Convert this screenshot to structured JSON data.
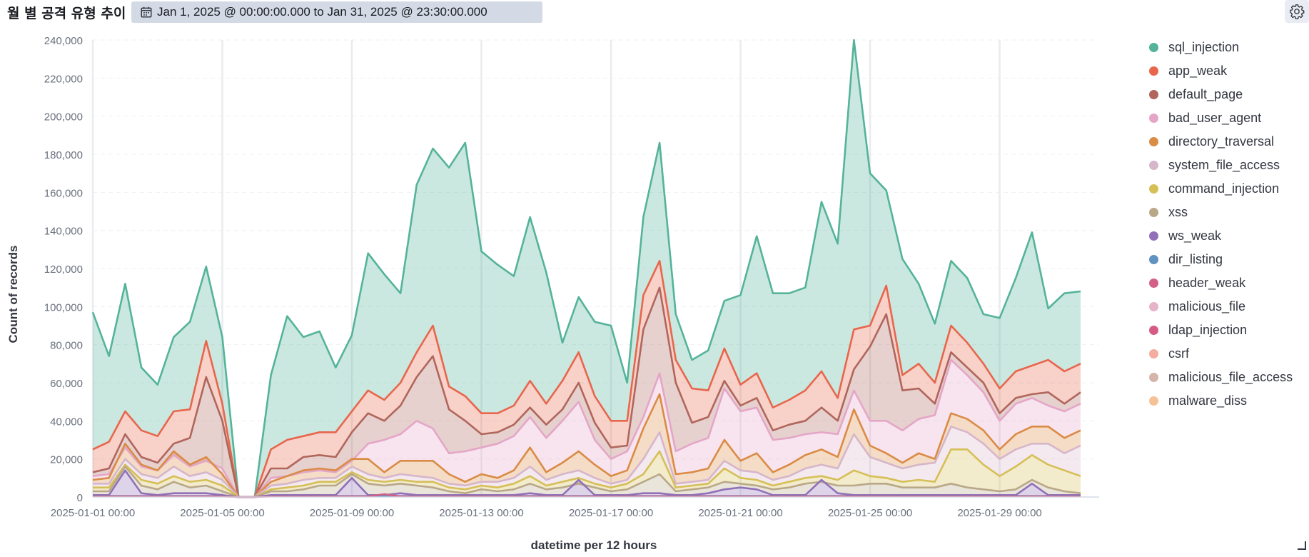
{
  "header": {
    "title": "월 별 공격 유형 추이",
    "time_range": "Jan 1, 2025 @ 00:00:00.000 to Jan 31, 2025 @ 23:30:00.000"
  },
  "icons": {
    "calendar": "calendar-icon",
    "settings": "gear-icon",
    "resize": "resize-handle-icon"
  },
  "chart_data": {
    "type": "area",
    "stacked": true,
    "xlabel": "datetime per 12 hours",
    "ylabel": "Count of records",
    "ylim": [
      0,
      240000
    ],
    "yticks": [
      0,
      20000,
      40000,
      60000,
      80000,
      100000,
      120000,
      140000,
      160000,
      180000,
      200000,
      220000,
      240000
    ],
    "ytick_labels": [
      "0",
      "20,000",
      "40,000",
      "60,000",
      "80,000",
      "100,000",
      "120,000",
      "140,000",
      "160,000",
      "180,000",
      "200,000",
      "220,000",
      "240,000"
    ],
    "x_start": "2025-01-01 00:00",
    "x_interval_hours": 12,
    "xtick_labels": [
      "2025-01-01 00:00",
      "2025-01-05 00:00",
      "2025-01-09 00:00",
      "2025-01-13 00:00",
      "2025-01-17 00:00",
      "2025-01-21 00:00",
      "2025-01-25 00:00",
      "2025-01-29 00:00"
    ],
    "grid": true,
    "legend_position": "right",
    "series": [
      {
        "name": "sql_injection",
        "color": "#54b399",
        "totals": [
          97000,
          74000,
          112000,
          68000,
          59000,
          84000,
          92000,
          121000,
          84000,
          0,
          0,
          64000,
          95000,
          84000,
          87000,
          68000,
          85000,
          128000,
          117000,
          107000,
          164000,
          183000,
          173000,
          186000,
          129000,
          122000,
          116000,
          147000,
          118000,
          81000,
          105000,
          92000,
          90000,
          60000,
          147000,
          186000,
          96000,
          72000,
          77000,
          103000,
          106000,
          137000,
          107000,
          107000,
          110000,
          155000,
          133000,
          240000,
          170000,
          161000,
          125000,
          112000,
          91000,
          124000,
          115000,
          96000,
          94000,
          115000,
          139000,
          99000,
          107000,
          108000
        ]
      },
      {
        "name": "app_weak",
        "color": "#e7664c",
        "totals": [
          25000,
          29000,
          45000,
          35000,
          32000,
          45000,
          46000,
          82000,
          49000,
          0,
          0,
          25000,
          30000,
          32000,
          34000,
          34000,
          45000,
          56000,
          51000,
          60000,
          76000,
          90000,
          58000,
          53000,
          44000,
          44000,
          48000,
          61000,
          49000,
          61000,
          76000,
          53000,
          40000,
          40000,
          106000,
          124000,
          72000,
          57000,
          56000,
          78000,
          59000,
          65000,
          47000,
          51000,
          56000,
          66000,
          52000,
          88000,
          90000,
          111000,
          64000,
          70000,
          60000,
          90000,
          81000,
          70000,
          57000,
          66000,
          69000,
          72000,
          66000,
          70000
        ]
      },
      {
        "name": "default_page",
        "color": "#b0665c",
        "totals": [
          13000,
          15000,
          33000,
          21000,
          18000,
          28000,
          31000,
          63000,
          40000,
          0,
          0,
          15000,
          15000,
          21000,
          22000,
          21000,
          34000,
          44000,
          40000,
          48000,
          63000,
          74000,
          46000,
          40000,
          33000,
          34000,
          38000,
          47000,
          38000,
          46000,
          60000,
          39000,
          26000,
          27000,
          88000,
          110000,
          60000,
          39000,
          42000,
          61000,
          48000,
          52000,
          35000,
          38000,
          40000,
          47000,
          40000,
          67000,
          79000,
          96000,
          56000,
          57000,
          49000,
          76000,
          68000,
          60000,
          44000,
          52000,
          54000,
          55000,
          49000,
          55000
        ]
      },
      {
        "name": "bad_user_agent",
        "color": "#e4a6c7",
        "totals": [
          11000,
          12000,
          26000,
          16000,
          14000,
          22000,
          16000,
          19000,
          15000,
          0,
          0,
          10000,
          11000,
          13000,
          14000,
          13000,
          19000,
          28000,
          30000,
          33000,
          40000,
          36000,
          23000,
          24000,
          26000,
          28000,
          32000,
          42000,
          31000,
          40000,
          50000,
          30000,
          20000,
          24000,
          42000,
          65000,
          24000,
          28000,
          31000,
          57000,
          45000,
          47000,
          30000,
          31000,
          33000,
          34000,
          33000,
          56000,
          40000,
          40000,
          35000,
          41000,
          43000,
          72000,
          64000,
          55000,
          40000,
          49000,
          52000,
          48000,
          45000,
          49000
        ]
      },
      {
        "name": "directory_traversal",
        "color": "#da8b45",
        "totals": [
          9000,
          10000,
          28000,
          17000,
          14000,
          24000,
          17000,
          21000,
          12000,
          0,
          0,
          8000,
          11000,
          14000,
          15000,
          14000,
          20000,
          20000,
          13000,
          19000,
          19000,
          19000,
          12000,
          8000,
          12000,
          10000,
          14000,
          26000,
          13000,
          18000,
          24000,
          17000,
          11000,
          14000,
          36000,
          54000,
          12000,
          13000,
          15000,
          30000,
          19000,
          23000,
          13000,
          17000,
          22000,
          25000,
          21000,
          46000,
          27000,
          23000,
          18000,
          23000,
          20000,
          44000,
          41000,
          35000,
          25000,
          33000,
          37000,
          37000,
          31000,
          35000
        ]
      },
      {
        "name": "system_file_access",
        "color": "#d6b6c9",
        "totals": [
          7000,
          7000,
          20000,
          12000,
          10000,
          16000,
          11000,
          13000,
          9000,
          0,
          0,
          6000,
          7000,
          9000,
          10000,
          10000,
          16000,
          12000,
          10000,
          12000,
          11000,
          10000,
          7000,
          6000,
          8000,
          8000,
          10000,
          16000,
          9000,
          12000,
          14000,
          10000,
          7000,
          9000,
          20000,
          34000,
          7000,
          8000,
          9000,
          19000,
          14000,
          13000,
          9000,
          11000,
          15000,
          17000,
          15000,
          33000,
          21000,
          18000,
          15000,
          17000,
          18000,
          37000,
          34000,
          28000,
          20000,
          25000,
          28000,
          28000,
          23000,
          27000
        ]
      },
      {
        "name": "command_injection",
        "color": "#d6bf57",
        "totals": [
          5000,
          5000,
          17000,
          9000,
          7000,
          11000,
          8000,
          9000,
          6000,
          0,
          0,
          4000,
          5000,
          6000,
          8000,
          8000,
          13000,
          9000,
          8000,
          9000,
          8000,
          8000,
          5000,
          4000,
          6000,
          5000,
          7000,
          11000,
          6000,
          8000,
          10000,
          7000,
          5000,
          7000,
          12000,
          24000,
          5000,
          6000,
          7000,
          15000,
          10000,
          9000,
          6000,
          8000,
          10000,
          11000,
          9000,
          14000,
          11000,
          10000,
          8000,
          9000,
          8000,
          25000,
          25000,
          17000,
          11000,
          16000,
          22000,
          17000,
          14000,
          11000
        ]
      },
      {
        "name": "xss",
        "color": "#b9a888",
        "totals": [
          3000,
          3000,
          16000,
          6000,
          4000,
          8000,
          5000,
          6000,
          3000,
          0,
          0,
          3000,
          3000,
          4000,
          6000,
          6000,
          12000,
          7000,
          6000,
          7000,
          6000,
          5000,
          3000,
          2000,
          4000,
          3000,
          4000,
          7000,
          4000,
          5000,
          7000,
          5000,
          3000,
          4000,
          8000,
          12000,
          3000,
          4000,
          5000,
          8000,
          7000,
          6000,
          4000,
          5000,
          7000,
          8000,
          6000,
          6000,
          7000,
          7000,
          5000,
          5000,
          5000,
          7000,
          5000,
          4000,
          3000,
          4000,
          9000,
          5000,
          3000,
          2000
        ]
      },
      {
        "name": "ws_weak",
        "color": "#9170b8",
        "totals": [
          1000,
          1000,
          14000,
          2000,
          1000,
          2000,
          2000,
          2000,
          1000,
          0,
          0,
          1000,
          1000,
          1000,
          1000,
          1000,
          10000,
          1000,
          1000,
          2000,
          1000,
          1000,
          1000,
          1000,
          1000,
          1000,
          1000,
          2000,
          1000,
          1000,
          9000,
          1000,
          1000,
          1000,
          2000,
          2000,
          1000,
          1000,
          2000,
          4000,
          5000,
          4000,
          1000,
          1000,
          1000,
          9000,
          2000,
          1000,
          1000,
          1000,
          1000,
          1000,
          1000,
          1000,
          1000,
          1000,
          1000,
          1000,
          7000,
          1000,
          1000,
          1000
        ]
      },
      {
        "name": "dir_listing",
        "color": "#6092c0",
        "totals": [
          500,
          500,
          500,
          500,
          500,
          500,
          500,
          500,
          500,
          0,
          0,
          500,
          500,
          500,
          500,
          500,
          500,
          500,
          500,
          500,
          500,
          500,
          500,
          500,
          500,
          500,
          500,
          500,
          500,
          500,
          500,
          500,
          500,
          500,
          500,
          500,
          500,
          500,
          500,
          500,
          500,
          500,
          500,
          500,
          500,
          500,
          500,
          500,
          500,
          500,
          500,
          500,
          500,
          500,
          500,
          500,
          500,
          500,
          500,
          500,
          500,
          500
        ]
      },
      {
        "name": "header_weak",
        "color": "#d36086",
        "totals": [
          300,
          300,
          300,
          300,
          300,
          300,
          300,
          300,
          300,
          0,
          0,
          300,
          300,
          300,
          300,
          300,
          300,
          300,
          1500,
          300,
          300,
          300,
          300,
          300,
          300,
          300,
          300,
          300,
          300,
          300,
          300,
          300,
          300,
          300,
          300,
          300,
          300,
          300,
          300,
          300,
          300,
          300,
          300,
          300,
          300,
          300,
          300,
          300,
          300,
          300,
          300,
          300,
          300,
          300,
          300,
          300,
          300,
          300,
          300,
          300,
          300,
          300
        ]
      },
      {
        "name": "malicious_file",
        "color": "#e7b3c8",
        "totals": []
      },
      {
        "name": "ldap_injection",
        "color": "#d65b84",
        "totals": []
      },
      {
        "name": "csrf",
        "color": "#f3ac9d",
        "totals": []
      },
      {
        "name": "malicious_file_access",
        "color": "#d6b4ab",
        "totals": []
      },
      {
        "name": "malware_diss",
        "color": "#f5c196",
        "totals": []
      }
    ]
  }
}
